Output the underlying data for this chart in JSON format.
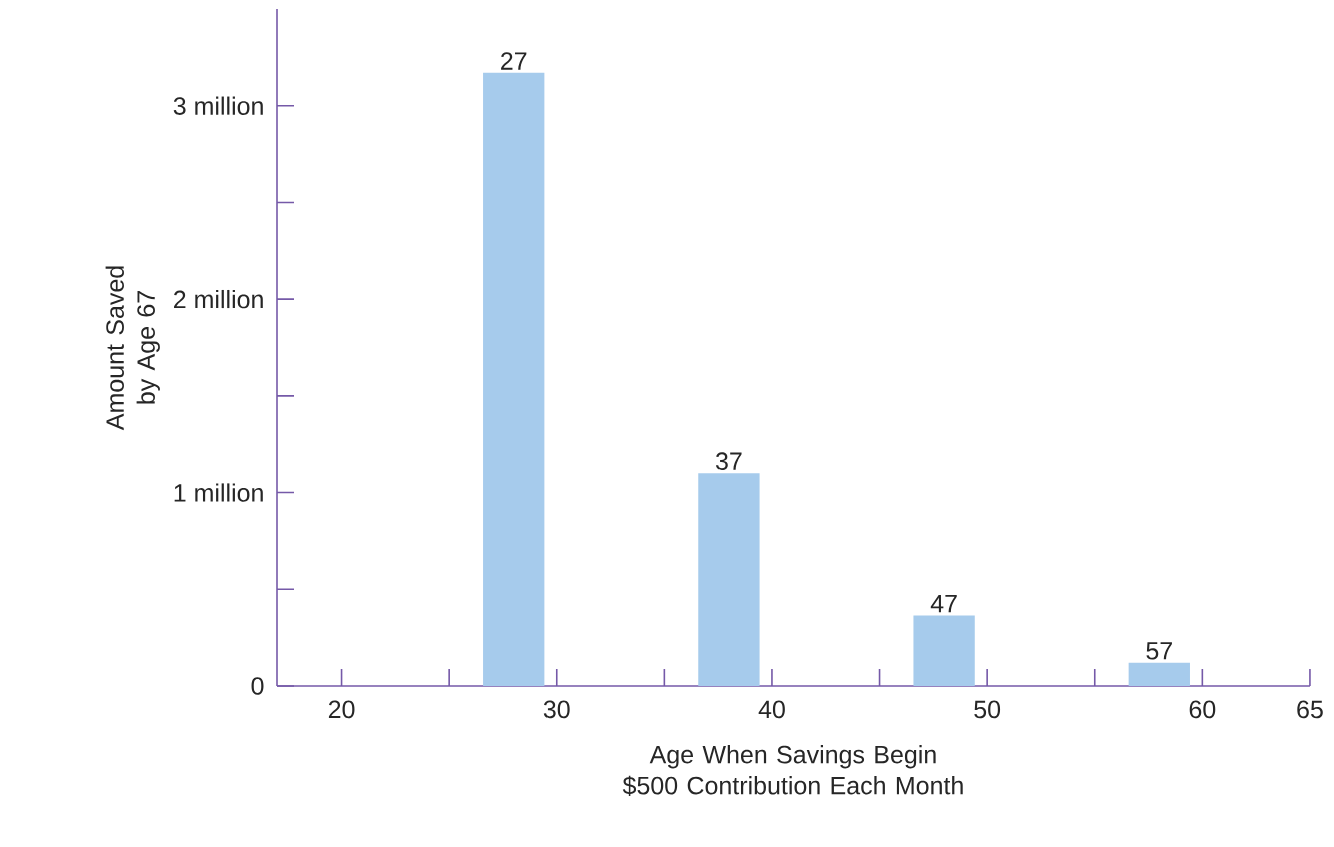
{
  "chart_data": {
    "type": "bar",
    "xlabel": "Age When Savings Begin $500 Contribution Each Month",
    "ylabel": "Amount Saved by Age 67",
    "x": [
      28,
      38,
      48,
      58
    ],
    "values": [
      3.17,
      1.1,
      0.365,
      0.12
    ],
    "color": "#a6cbec",
    "xlim": [
      17,
      65
    ],
    "xticks": [
      20,
      30,
      40,
      50,
      60,
      65
    ],
    "ylim": [
      0,
      3.5
    ],
    "yticks": [
      0,
      {
        "value": 1,
        "label": "1 million"
      },
      {
        "value": 2,
        "label": "2 million"
      },
      {
        "value": 3,
        "label": "3 million"
      }
    ],
    "annotations": [
      {
        "text": "27",
        "x": 28,
        "y": 3.17
      },
      {
        "text": "37",
        "x": 38,
        "y": 1.1
      },
      {
        "text": "47",
        "x": 48,
        "y": 0.365
      },
      {
        "text": "57",
        "x": 58,
        "y": 0.12
      }
    ],
    "grid": false
  }
}
